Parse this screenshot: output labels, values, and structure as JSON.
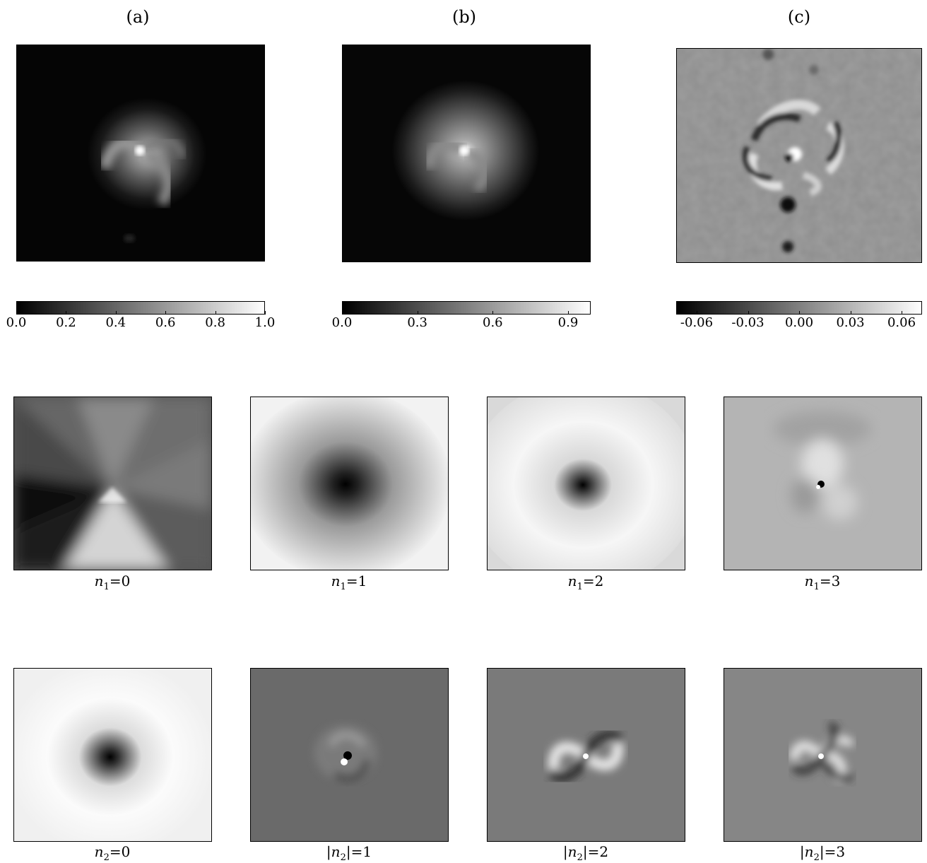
{
  "panel_labels": [
    "(a)",
    "(b)",
    "(c)"
  ],
  "colorbars": [
    {
      "ticks": [
        "0.0",
        "0.2",
        "0.4",
        "0.6",
        "0.8",
        "1.0"
      ],
      "values": [
        0.0,
        0.2,
        0.4,
        0.6,
        0.8,
        1.0
      ],
      "range": [
        0.0,
        1.0
      ]
    },
    {
      "ticks": [
        "0.0",
        "0.3",
        "0.6",
        "0.9"
      ],
      "values": [
        0.0,
        0.3,
        0.6,
        0.9
      ],
      "range": [
        0.0,
        0.99
      ]
    },
    {
      "ticks": [
        "-0.06",
        "-0.03",
        "0.00",
        "0.03",
        "0.06"
      ],
      "values": [
        -0.06,
        -0.03,
        0.0,
        0.03,
        0.06
      ],
      "range": [
        -0.072,
        0.072
      ]
    }
  ],
  "row1_captions": [
    {
      "sym": "n",
      "sub": "1",
      "eq": "=0",
      "abs": false
    },
    {
      "sym": "n",
      "sub": "1",
      "eq": "=1",
      "abs": false
    },
    {
      "sym": "n",
      "sub": "1",
      "eq": "=2",
      "abs": false
    },
    {
      "sym": "n",
      "sub": "1",
      "eq": "=3",
      "abs": false
    }
  ],
  "row2_captions": [
    {
      "sym": "n",
      "sub": "2",
      "eq": "=0",
      "abs": false
    },
    {
      "sym": "n",
      "sub": "2",
      "eq": "=1",
      "abs": true
    },
    {
      "sym": "n",
      "sub": "2",
      "eq": "=2",
      "abs": true
    },
    {
      "sym": "n",
      "sub": "2",
      "eq": "=3",
      "abs": true
    }
  ]
}
